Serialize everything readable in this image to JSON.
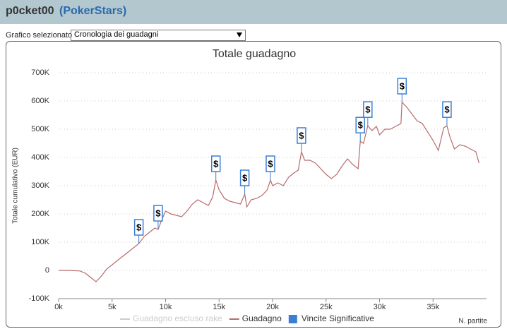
{
  "header": {
    "user": "p0cket00",
    "site": "(PokerStars)"
  },
  "selector": {
    "label": "Grafico selezionato",
    "value": "Cronologia dei guadagni"
  },
  "chart_data": {
    "type": "line",
    "title": "Totale guadagno",
    "y_label": "Totale cumulativo (EUR)",
    "x_label": "N. partite",
    "xlim": [
      0,
      40000
    ],
    "xticks": [
      {
        "value": 0,
        "label": "0k"
      },
      {
        "value": 5000,
        "label": "5k"
      },
      {
        "value": 10000,
        "label": "10k"
      },
      {
        "value": 15000,
        "label": "15k"
      },
      {
        "value": 20000,
        "label": "20k"
      },
      {
        "value": 25000,
        "label": "25k"
      },
      {
        "value": 30000,
        "label": "30k"
      },
      {
        "value": 35000,
        "label": "35k"
      }
    ],
    "ylim": [
      -100000,
      700000
    ],
    "yticks": [
      {
        "value": -100000,
        "label": "-100K"
      },
      0,
      {
        "value": 100000,
        "label": "100K"
      },
      {
        "value": 200000,
        "label": "200K"
      },
      {
        "value": 300000,
        "label": "300K"
      },
      {
        "value": 400000,
        "label": "400K"
      },
      {
        "value": 500000,
        "label": "500K"
      },
      {
        "value": 600000,
        "label": "600K"
      },
      {
        "value": 700000,
        "label": "700K"
      }
    ],
    "grid": true,
    "series": [
      {
        "name": "Guadagno escluso rake",
        "color": "#cccccc",
        "hidden": true
      },
      {
        "name": "Guadagno",
        "color": "#b86b6b",
        "x": [
          0,
          1000,
          2000,
          2500,
          3000,
          3500,
          4000,
          4500,
          5000,
          5500,
          6000,
          6500,
          7000,
          7500,
          8000,
          8500,
          9000,
          9300,
          9600,
          10000,
          10500,
          11000,
          11500,
          12000,
          12500,
          13000,
          13500,
          14000,
          14400,
          14700,
          15000,
          15500,
          16000,
          16500,
          17000,
          17400,
          17600,
          18000,
          18500,
          19000,
          19500,
          19800,
          20000,
          20500,
          21000,
          21500,
          22000,
          22400,
          22700,
          23000,
          23500,
          24000,
          24500,
          25000,
          25500,
          26000,
          26500,
          27000,
          27500,
          28000,
          28200,
          28500,
          28900,
          29300,
          29700,
          30000,
          30500,
          31000,
          31500,
          32000,
          32100,
          32500,
          33000,
          33500,
          34000,
          34500,
          35000,
          35500,
          36000,
          36300,
          36600,
          37000,
          37500,
          38000,
          38500,
          39000,
          39300
        ],
        "values": [
          0,
          0,
          -2000,
          -10000,
          -25000,
          -40000,
          -20000,
          5000,
          20000,
          35000,
          50000,
          65000,
          80000,
          95000,
          120000,
          135000,
          150000,
          145000,
          175000,
          210000,
          200000,
          195000,
          190000,
          210000,
          235000,
          250000,
          240000,
          230000,
          260000,
          320000,
          285000,
          255000,
          245000,
          240000,
          235000,
          270000,
          225000,
          250000,
          255000,
          265000,
          285000,
          320000,
          300000,
          310000,
          300000,
          330000,
          345000,
          355000,
          420000,
          390000,
          390000,
          380000,
          360000,
          340000,
          325000,
          340000,
          370000,
          395000,
          375000,
          360000,
          457000,
          450000,
          512000,
          495000,
          510000,
          480000,
          500000,
          500000,
          510000,
          520000,
          595000,
          580000,
          555000,
          530000,
          520000,
          490000,
          460000,
          425000,
          505000,
          512000,
          470000,
          430000,
          445000,
          440000,
          430000,
          420000,
          380000
        ]
      },
      {
        "name": "Vincite Significative",
        "color": "#3a7fd5",
        "type": "flag",
        "marker": "$",
        "x": [
          7500,
          9300,
          14700,
          17400,
          19800,
          22700,
          28200,
          28900,
          32100,
          36300
        ],
        "values": [
          95000,
          145000,
          320000,
          270000,
          320000,
          420000,
          457000,
          512000,
          595000,
          512000
        ]
      }
    ]
  }
}
